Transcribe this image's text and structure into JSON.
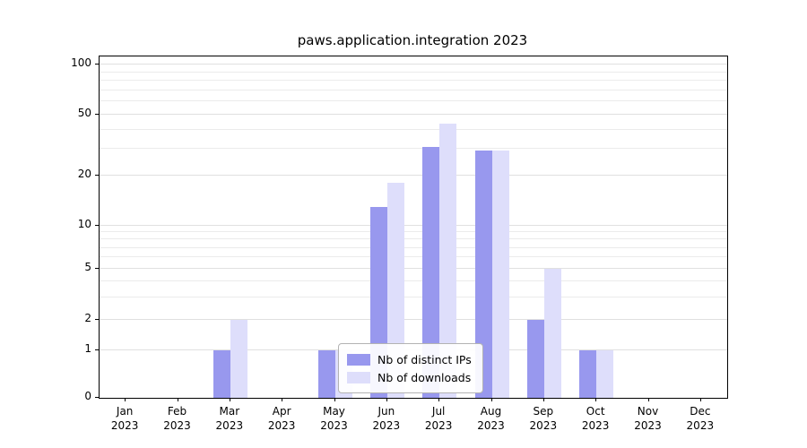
{
  "chart_data": {
    "type": "bar",
    "title": "paws.application.integration 2023",
    "categories": [
      "Jan",
      "Feb",
      "Mar",
      "Apr",
      "May",
      "Jun",
      "Jul",
      "Aug",
      "Sep",
      "Oct",
      "Nov",
      "Dec"
    ],
    "x_tick_year": "2023",
    "series": [
      {
        "name": "Nb of distinct IPs",
        "color": "#9898ee",
        "values": [
          0,
          0,
          1,
          0,
          1,
          13,
          31,
          29,
          2,
          1,
          0,
          0
        ]
      },
      {
        "name": "Nb of downloads",
        "color": "#dedefb",
        "values": [
          0,
          0,
          2,
          0,
          1,
          18,
          44,
          29,
          5,
          1,
          0,
          0
        ]
      }
    ],
    "y_ticks": [
      0,
      1,
      2,
      5,
      10,
      20,
      50,
      100
    ],
    "y_scale": "symlog",
    "ylim": [
      0,
      110
    ],
    "grid": "horizontal-minor-log",
    "legend_position": "bottom-center"
  }
}
